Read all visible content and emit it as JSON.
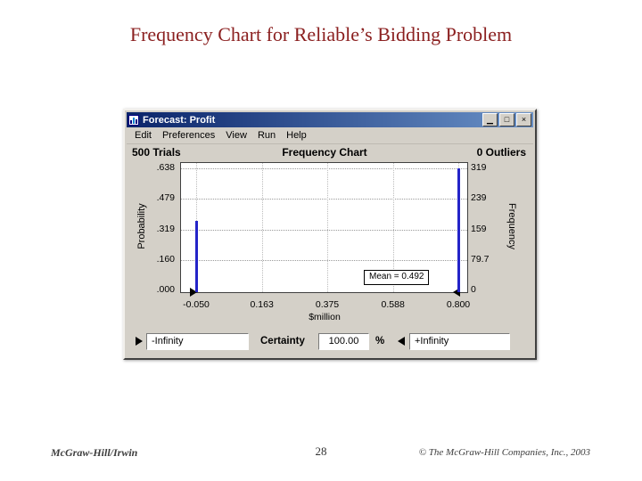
{
  "slide": {
    "title": "Frequency Chart for Reliable’s Bidding Problem",
    "footer_left": "McGraw-Hill/Irwin",
    "page_number": "28",
    "footer_right": "© The McGraw-Hill Companies, Inc., 2003"
  },
  "colors": {
    "title_text": "#8b2020",
    "bar": "#2424c8",
    "titlebar_start": "#0a246a",
    "titlebar_end": "#6a92c8",
    "window_chrome": "#d4d0c8"
  },
  "window": {
    "title": "Forecast: Profit",
    "buttons": {
      "minimize": "▁",
      "maximize": "□",
      "close": "×"
    },
    "menu_items": [
      "Edit",
      "Preferences",
      "View",
      "Run",
      "Help"
    ],
    "header": {
      "trials": "500 Trials",
      "chart_title": "Frequency Chart",
      "outliers": "0 Outliers"
    },
    "mean_label": "Mean = 0.492",
    "controls": {
      "lower_bound": "-Infinity",
      "certainty_label": "Certainty",
      "certainty_value": "100.00",
      "percent_label": "%",
      "upper_bound": "+Infinity"
    }
  },
  "chart_data": {
    "type": "bar",
    "title": "Frequency Chart",
    "trials": 500,
    "outliers": 0,
    "xlabel": "$million",
    "ylabel_left": "Probability",
    "ylabel_right": "Frequency",
    "x_ticks": [
      "-0.050",
      "0.163",
      "0.375",
      "0.588",
      "0.800"
    ],
    "y_ticks_left": [
      ".638",
      ".479",
      ".319",
      ".160",
      ".000"
    ],
    "y_ticks_right": [
      "319",
      "239",
      "159",
      "79.7",
      "0"
    ],
    "ylim_probability": [
      0,
      0.638
    ],
    "ylim_frequency": [
      0,
      319
    ],
    "bars": [
      {
        "x": -0.05,
        "probability": 0.362,
        "frequency": 181
      },
      {
        "x": 0.8,
        "probability": 0.638,
        "frequency": 319
      }
    ],
    "mean": 0.492,
    "grid": "dotted",
    "legend": "none"
  }
}
